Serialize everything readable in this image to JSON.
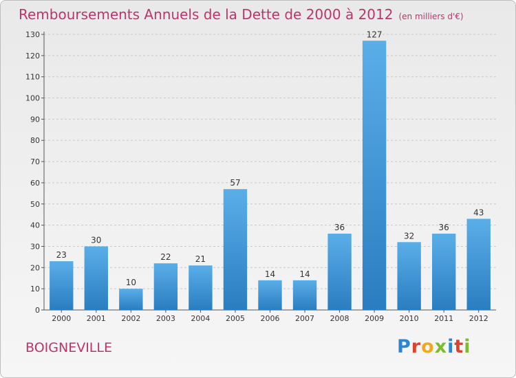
{
  "header": {
    "title": "Remboursements Annuels de la Dette de 2000 à 2012",
    "unit": "(en milliers d'€)"
  },
  "footer": {
    "commune": "BOIGNEVILLE",
    "logo": {
      "letters": [
        {
          "char": "P",
          "color": "#2e86d1"
        },
        {
          "char": "r",
          "color": "#e0412a"
        },
        {
          "char": "o",
          "color": "#f0a81e"
        },
        {
          "char": "x",
          "color": "#7dbb2f"
        },
        {
          "char": "i",
          "color": "#2e86d1"
        },
        {
          "char": "t",
          "color": "#e0412a"
        },
        {
          "char": "i",
          "color": "#7dbb2f"
        }
      ]
    }
  },
  "chart_data": {
    "type": "bar",
    "title": "Remboursements Annuels de la Dette de 2000 à 2012",
    "subtitle": "(en milliers d'€)",
    "xlabel": "",
    "ylabel": "",
    "categories": [
      "2000",
      "2001",
      "2002",
      "2003",
      "2004",
      "2005",
      "2006",
      "2007",
      "2008",
      "2009",
      "2010",
      "2011",
      "2012"
    ],
    "values": [
      23,
      30,
      10,
      22,
      21,
      57,
      14,
      14,
      36,
      127,
      32,
      36,
      43
    ],
    "data_labels": [
      "23",
      "30",
      "10",
      "22",
      "21",
      "57",
      "14",
      "14",
      "36",
      "127",
      "32",
      "36",
      "43"
    ],
    "y_ticks": [
      "0",
      "10",
      "20",
      "30",
      "40",
      "50",
      "60",
      "70",
      "80",
      "90",
      "100",
      "110",
      "120",
      "130"
    ],
    "ylim": [
      0,
      130
    ],
    "grid": "horizontal",
    "legend": "none",
    "colors": {
      "bar_top": "#5aaee8",
      "bar_bottom": "#2a7dc0",
      "grid": "#c8c8c8",
      "title": "#c0336a"
    }
  }
}
